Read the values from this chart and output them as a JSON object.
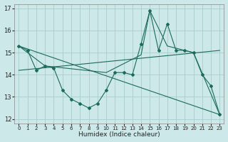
{
  "title": "",
  "xlabel": "Humidex (Indice chaleur)",
  "ylabel": "",
  "bg_color": "#cce8e8",
  "grid_color": "#aacccc",
  "line_color": "#1a6b5a",
  "xlim": [
    -0.5,
    23.5
  ],
  "ylim": [
    11.8,
    17.2
  ],
  "xticks": [
    0,
    1,
    2,
    3,
    4,
    5,
    6,
    7,
    8,
    9,
    10,
    11,
    12,
    13,
    14,
    15,
    16,
    17,
    18,
    19,
    20,
    21,
    22,
    23
  ],
  "yticks": [
    12,
    13,
    14,
    15,
    16,
    17
  ],
  "line1": {
    "x": [
      0,
      1,
      2,
      3,
      4,
      5,
      6,
      7,
      8,
      9,
      10,
      11,
      12,
      13,
      14,
      15,
      16,
      17,
      18,
      19,
      20,
      21,
      22,
      23
    ],
    "y": [
      15.3,
      15.1,
      14.2,
      14.4,
      14.3,
      13.3,
      12.9,
      12.7,
      12.5,
      12.7,
      13.3,
      14.1,
      14.1,
      14.0,
      15.4,
      16.9,
      15.1,
      16.3,
      15.1,
      15.1,
      15.0,
      14.0,
      13.5,
      12.2
    ]
  },
  "line2": {
    "x": [
      0,
      3,
      10,
      14,
      15,
      17,
      19,
      20,
      23
    ],
    "y": [
      15.3,
      14.4,
      14.1,
      14.9,
      16.9,
      15.3,
      15.1,
      15.0,
      12.2
    ]
  },
  "line3_x": [
    0,
    23
  ],
  "line3_y": [
    15.3,
    12.2
  ],
  "line4_x": [
    0,
    23
  ],
  "line4_y": [
    14.2,
    15.1
  ]
}
